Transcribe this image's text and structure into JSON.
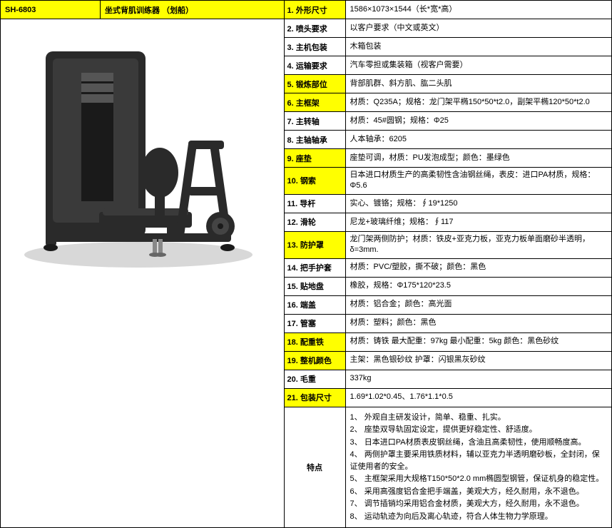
{
  "header": {
    "sku": "SH-6803",
    "product_name": "坐式背肌训练器  （划船）"
  },
  "specs": [
    {
      "num": "1.",
      "label": "外形尺寸",
      "value": "1586×1073×1544（长*宽*高）",
      "highlight": true
    },
    {
      "num": "2.",
      "label": "喷头要求",
      "value": "以客户要求（中文或英文）",
      "highlight": false
    },
    {
      "num": "3.",
      "label": "主机包装",
      "value": "木箱包装",
      "highlight": false
    },
    {
      "num": "4.",
      "label": "运输要求",
      "value": "汽车零担或集装箱（视客户需要）",
      "highlight": false
    },
    {
      "num": "5.",
      "label": "锻炼部位",
      "value": "背部肌群、斜方肌、肱二头肌",
      "highlight": true
    },
    {
      "num": "6.",
      "label": "主框架",
      "value": "材质：Q235A；规格：龙门架平椭150*50*t2.0，副架平椭120*50*t2.0",
      "highlight": true
    },
    {
      "num": "7.",
      "label": "主转轴",
      "value": "材质：45#圆钢；规格：Φ25",
      "highlight": false
    },
    {
      "num": "8.",
      "label": "主轴轴承",
      "value": "人本轴承：6205",
      "highlight": false
    },
    {
      "num": "9.",
      "label": "座垫",
      "value": "座垫可调，材质：PU发泡成型；颜色：墨绿色",
      "highlight": true
    },
    {
      "num": "10.",
      "label": "钢索",
      "value": "日本进口材质生产的高柔韧性含油钢丝绳，表皮：进口PA材质，规格：Φ5.6",
      "highlight": true
    },
    {
      "num": "11.",
      "label": "导杆",
      "value": "实心、镀铬；规格：∮19*1250",
      "highlight": false
    },
    {
      "num": "12.",
      "label": "滑轮",
      "value": "尼龙+玻璃纤维；规格：∮117",
      "highlight": false
    },
    {
      "num": "13.",
      "label": "防护罩",
      "value": "龙门架两侧防护；材质：铁皮+亚克力板，亚克力板单面磨砂半透明，δ=3mm.",
      "highlight": true
    },
    {
      "num": "14.",
      "label": "把手护套",
      "value": "材质：PVC/塑胶，撕不破；颜色：黑色",
      "highlight": false
    },
    {
      "num": "15.",
      "label": "贴地盘",
      "value": "橡胶，规格：Φ175*120*23.5",
      "highlight": false
    },
    {
      "num": "16.",
      "label": "端盖",
      "value": "材质：铝合金；颜色：高光面",
      "highlight": false
    },
    {
      "num": "17.",
      "label": "管塞",
      "value": "材质：塑料；颜色：黑色",
      "highlight": false
    },
    {
      "num": "18.",
      "label": "配重铁",
      "value": "材质：铸铁     最大配重：97kg       最小配重：5kg       颜色：黑色砂纹",
      "highlight": true
    },
    {
      "num": "19.",
      "label": "整机颜色",
      "value": "主架：黑色银砂纹    护罩：闪银黑灰砂纹",
      "highlight": true
    },
    {
      "num": "20.",
      "label": "毛重",
      "value": "337kg",
      "highlight": false
    },
    {
      "num": "21.",
      "label": "包装尺寸",
      "value": "1.69*1.02*0.45、1.76*1.1*0.5",
      "highlight": true
    }
  ],
  "features": {
    "label": "特点",
    "items": [
      "1、 外观自主研发设计，简单、稳重、扎实。",
      "2、 座垫双导轨固定设定，提供更好稳定性、舒适度。",
      "3、 日本进口PA材质表皮钢丝绳，含油且高柔韧性，使用顺畅度高。",
      "4、 两侧护罩主要采用铁质材料，辅以亚克力半透明磨砂板，全封闭，保证使用者的安全。",
      "5、   主框架采用大规格T150*50*2.0 mm椭圆型钢管，保证机身的稳定性。",
      "6、 采用高强度铝合金把手端盖，美观大方，经久耐用，永不退色。",
      "7、 调节插销均采用铝合金材质，美观大方，经久耐用，永不退色。",
      "8、 运动轨迹为向后及离心轨迹，符合人体生物力学原理。"
    ]
  },
  "colors": {
    "highlight_bg": "#ffff00",
    "border": "#000000",
    "machine_dark": "#2a2a2a",
    "machine_light": "#555555"
  }
}
